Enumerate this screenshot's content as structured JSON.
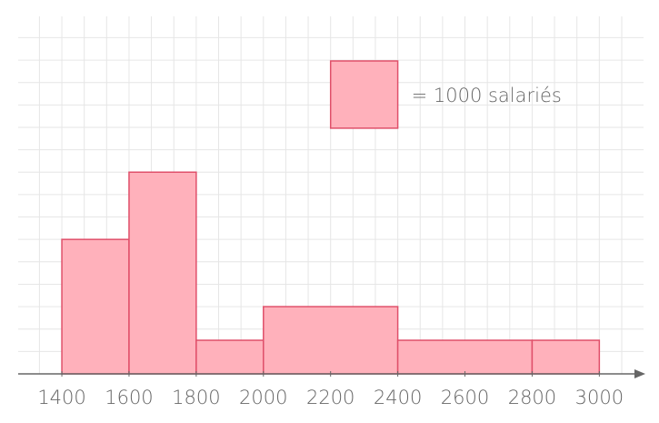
{
  "chart_data": {
    "type": "histogram",
    "bins": [
      1400,
      1600,
      1800,
      2000,
      2400,
      2800,
      3000
    ],
    "values": [
      2000,
      3000,
      500,
      2000,
      1000,
      500
    ],
    "color": "#ffb1bb",
    "edge_color": "#e0506a",
    "xlim": [
      1270,
      3110
    ],
    "xticks": [
      1400,
      1600,
      1800,
      2000,
      2200,
      2400,
      2600,
      2800,
      3000
    ],
    "legend_value": 1000,
    "legend_label": "= 1000 salariés",
    "grid": true
  }
}
